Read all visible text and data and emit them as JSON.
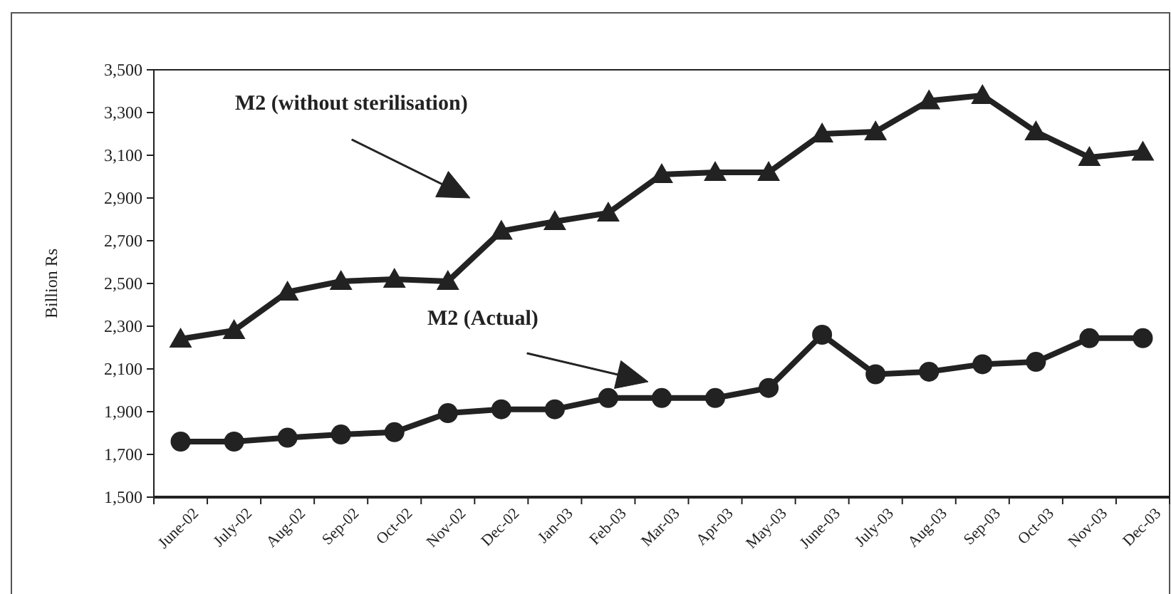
{
  "chart_data": {
    "type": "line",
    "ylabel": "Billion Rs",
    "categories": [
      "June-02",
      "July-02",
      "Aug-02",
      "Sep-02",
      "Oct-02",
      "Nov-02",
      "Dec-02",
      "Jan-03",
      "Feb-03",
      "Mar-03",
      "Apr-03",
      "May-03",
      "June-03",
      "July-03",
      "Aug-03",
      "Sep-03",
      "Oct-03",
      "Nov-03",
      "Dec-03"
    ],
    "series": [
      {
        "color": "#222222",
        "marker": "triangle",
        "values": [
          2240,
          2280,
          2460,
          2510,
          2520,
          2510,
          2745,
          2790,
          2830,
          3010,
          3020,
          3020,
          3200,
          3210,
          3355,
          3380,
          3210,
          3090,
          3115
        ]
      },
      {
        "color": "#222222",
        "marker": "circle",
        "values": [
          1760,
          1760,
          1778,
          1793,
          1804,
          1893,
          1911,
          1911,
          1964,
          1964,
          1964,
          2011,
          2260,
          2075,
          2087,
          2122,
          2133,
          2244,
          2244
        ]
      }
    ],
    "ylim": [
      1500,
      3500
    ],
    "yticks": [
      {
        "value": 1500,
        "label": "1,500"
      },
      {
        "value": 1700,
        "label": "1,700"
      },
      {
        "value": 1900,
        "label": "1,900"
      },
      {
        "value": 2100,
        "label": "2,100"
      },
      {
        "value": 2300,
        "label": "2,300"
      },
      {
        "value": 2500,
        "label": "2,500"
      },
      {
        "value": 2700,
        "label": "2,700"
      },
      {
        "value": 2900,
        "label": "2,900"
      },
      {
        "value": 3100,
        "label": "3,100"
      },
      {
        "value": 3300,
        "label": "3,300"
      },
      {
        "value": 3500,
        "label": "3,500"
      }
    ],
    "annotations": [
      "M2 (without sterilisation)",
      "M2 (Actual)"
    ],
    "grid": false,
    "line_style": "solid"
  }
}
